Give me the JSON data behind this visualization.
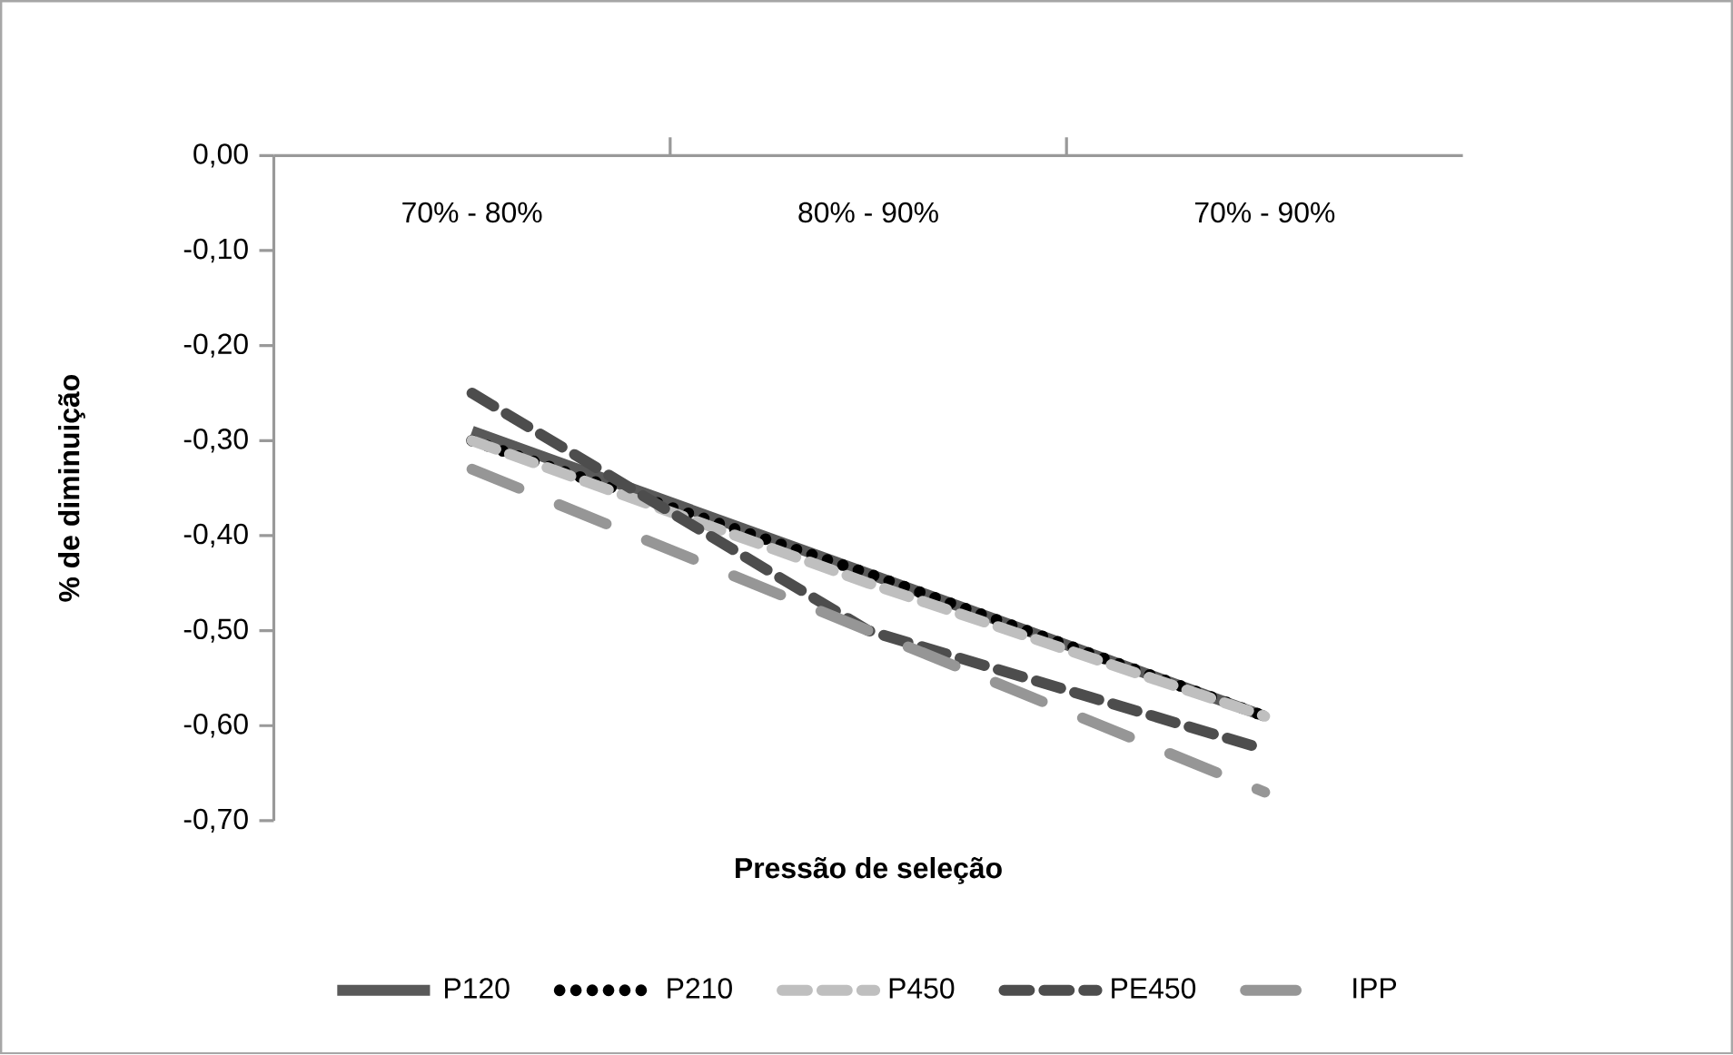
{
  "chart_data": {
    "type": "line",
    "xlabel": "Pressão de seleção",
    "ylabel": "% de diminuição",
    "categories": [
      "70% - 80%",
      "80% - 90%",
      "70% - 90%"
    ],
    "ylim": [
      -0.7,
      0
    ],
    "yticks": [
      {
        "value": 0,
        "label": "0,00"
      },
      {
        "value": -0.1,
        "label": "-0,10"
      },
      {
        "value": -0.2,
        "label": "-0,20"
      },
      {
        "value": -0.3,
        "label": "-0,30"
      },
      {
        "value": -0.4,
        "label": "-0,40"
      },
      {
        "value": -0.5,
        "label": "-0,50"
      },
      {
        "value": -0.6,
        "label": "-0,60"
      },
      {
        "value": -0.7,
        "label": "-0,70"
      }
    ],
    "series": [
      {
        "name": "P120",
        "color": "#595959",
        "line_style": "solid",
        "values": [
          -0.29,
          -0.44,
          -0.59
        ]
      },
      {
        "name": "P210",
        "color": "#000000",
        "line_style": "dotted",
        "values": [
          -0.3,
          -0.44,
          -0.59
        ]
      },
      {
        "name": "P450",
        "color": "#bfbfbf",
        "line_style": "dashed",
        "values": [
          -0.3,
          -0.45,
          -0.59
        ]
      },
      {
        "name": "PE450",
        "color": "#4d4d4d",
        "line_style": "dashed",
        "values": [
          -0.25,
          -0.5,
          -0.625
        ]
      },
      {
        "name": "IPP",
        "color": "#969696",
        "line_style": "dashdot",
        "values": [
          -0.33,
          -0.5,
          -0.67
        ]
      }
    ],
    "legend": "bottom",
    "grid": false,
    "marker": "none"
  }
}
